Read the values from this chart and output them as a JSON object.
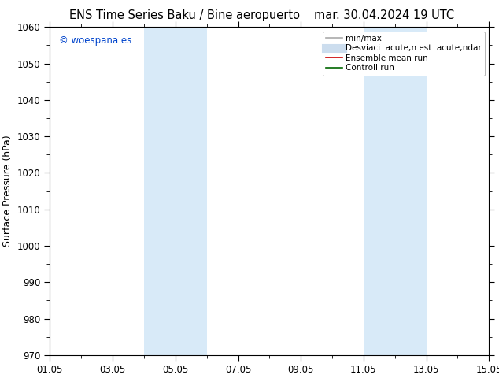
{
  "title_left": "ENS Time Series Baku / Bine aeropuerto",
  "title_right": "mar. 30.04.2024 19 UTC",
  "ylabel": "Surface Pressure (hPa)",
  "ylim": [
    970,
    1060
  ],
  "yticks": [
    970,
    980,
    990,
    1000,
    1010,
    1020,
    1030,
    1040,
    1050,
    1060
  ],
  "xlim_days": [
    0,
    14
  ],
  "xtick_labels": [
    "01.05",
    "03.05",
    "05.05",
    "07.05",
    "09.05",
    "11.05",
    "13.05",
    "15.05"
  ],
  "xtick_positions": [
    0,
    2,
    4,
    6,
    8,
    10,
    12,
    14
  ],
  "shaded_regions": [
    {
      "xstart": 3.0,
      "xend": 5.0,
      "color": "#d8eaf8"
    },
    {
      "xstart": 10.0,
      "xend": 12.0,
      "color": "#d8eaf8"
    }
  ],
  "watermark": "© woespana.es",
  "watermark_color": "#0044cc",
  "legend_labels": [
    "min/max",
    "Desviaci  acute;n est  acute;ndar",
    "Ensemble mean run",
    "Controll run"
  ],
  "legend_colors": [
    "#aaaaaa",
    "#ccddee",
    "#cc0000",
    "#006600"
  ],
  "legend_lw": [
    1.2,
    8,
    1.2,
    1.2
  ],
  "bg_color": "#ffffff",
  "plot_bg_color": "#ffffff",
  "border_color": "#000000",
  "tick_fontsize": 8.5,
  "label_fontsize": 9,
  "title_fontsize": 10.5
}
